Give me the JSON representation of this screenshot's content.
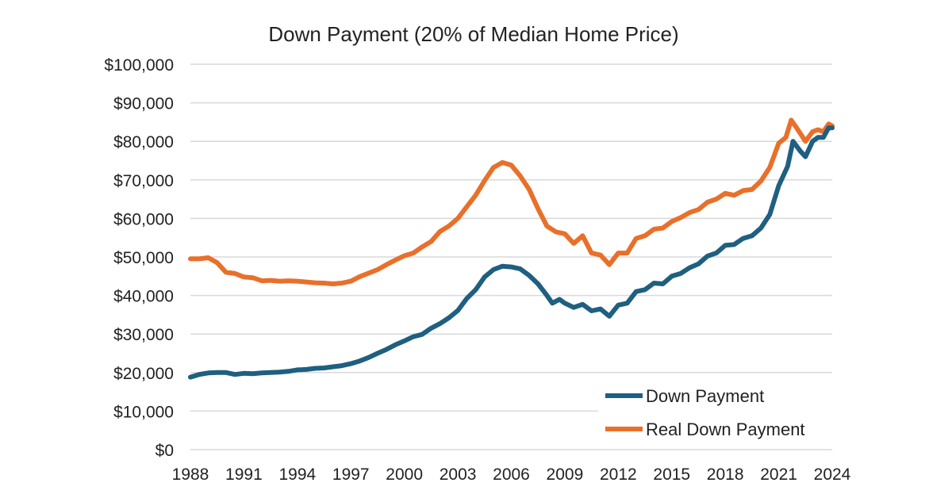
{
  "chart_data": {
    "type": "line",
    "title": "Down Payment (20% of Median Home Price)",
    "xlabel": "",
    "ylabel": "",
    "xlim": [
      1988,
      2024
    ],
    "ylim": [
      0,
      100000
    ],
    "x_ticks": [
      "1988",
      "1991",
      "1994",
      "1997",
      "2000",
      "2003",
      "2006",
      "2009",
      "2012",
      "2015",
      "2018",
      "2021",
      "2024"
    ],
    "y_ticks": [
      "$0",
      "$10,000",
      "$20,000",
      "$30,000",
      "$40,000",
      "$50,000",
      "$60,000",
      "$70,000",
      "$80,000",
      "$90,000",
      "$100,000"
    ],
    "grid": true,
    "legend_position": "bottom-right",
    "series": [
      {
        "name": "Down Payment",
        "color": "#1f5f80",
        "points": [
          [
            1988.0,
            18800
          ],
          [
            1988.5,
            19500
          ],
          [
            1989.0,
            19900
          ],
          [
            1989.5,
            20000
          ],
          [
            1990.0,
            20000
          ],
          [
            1990.5,
            19500
          ],
          [
            1991.0,
            19800
          ],
          [
            1991.5,
            19700
          ],
          [
            1992.0,
            19900
          ],
          [
            1992.5,
            20000
          ],
          [
            1993.0,
            20100
          ],
          [
            1993.5,
            20300
          ],
          [
            1994.0,
            20700
          ],
          [
            1994.5,
            20800
          ],
          [
            1995.0,
            21100
          ],
          [
            1995.5,
            21200
          ],
          [
            1996.0,
            21500
          ],
          [
            1996.5,
            21800
          ],
          [
            1997.0,
            22300
          ],
          [
            1997.5,
            23000
          ],
          [
            1998.0,
            23900
          ],
          [
            1998.5,
            25000
          ],
          [
            1999.0,
            26000
          ],
          [
            1999.5,
            27200
          ],
          [
            2000.0,
            28200
          ],
          [
            2000.5,
            29300
          ],
          [
            2001.0,
            29900
          ],
          [
            2001.5,
            31500
          ],
          [
            2002.0,
            32700
          ],
          [
            2002.5,
            34200
          ],
          [
            2003.0,
            36100
          ],
          [
            2003.5,
            39200
          ],
          [
            2004.0,
            41500
          ],
          [
            2004.5,
            44800
          ],
          [
            2005.0,
            46700
          ],
          [
            2005.5,
            47600
          ],
          [
            2006.0,
            47400
          ],
          [
            2006.5,
            46900
          ],
          [
            2007.0,
            45200
          ],
          [
            2007.5,
            43000
          ],
          [
            2008.0,
            40000
          ],
          [
            2008.3,
            38000
          ],
          [
            2008.7,
            39000
          ],
          [
            2009.0,
            38000
          ],
          [
            2009.5,
            36900
          ],
          [
            2010.0,
            37700
          ],
          [
            2010.5,
            36000
          ],
          [
            2011.0,
            36500
          ],
          [
            2011.5,
            34600
          ],
          [
            2012.0,
            37500
          ],
          [
            2012.5,
            38000
          ],
          [
            2013.0,
            41000
          ],
          [
            2013.5,
            41500
          ],
          [
            2014.0,
            43200
          ],
          [
            2014.5,
            43000
          ],
          [
            2015.0,
            45000
          ],
          [
            2015.5,
            45700
          ],
          [
            2016.0,
            47200
          ],
          [
            2016.5,
            48200
          ],
          [
            2017.0,
            50200
          ],
          [
            2017.5,
            51000
          ],
          [
            2018.0,
            53000
          ],
          [
            2018.5,
            53200
          ],
          [
            2019.0,
            54800
          ],
          [
            2019.5,
            55500
          ],
          [
            2020.0,
            57500
          ],
          [
            2020.5,
            61000
          ],
          [
            2021.0,
            68500
          ],
          [
            2021.5,
            73500
          ],
          [
            2021.8,
            80000
          ],
          [
            2022.2,
            77500
          ],
          [
            2022.5,
            76000
          ],
          [
            2022.9,
            80000
          ],
          [
            2023.2,
            81000
          ],
          [
            2023.5,
            81000
          ],
          [
            2023.8,
            83500
          ],
          [
            2024.0,
            83500
          ]
        ]
      },
      {
        "name": "Real Down Payment",
        "color": "#e8702a",
        "points": [
          [
            1988.0,
            49500
          ],
          [
            1988.5,
            49500
          ],
          [
            1989.0,
            49800
          ],
          [
            1989.5,
            48500
          ],
          [
            1990.0,
            46000
          ],
          [
            1990.5,
            45700
          ],
          [
            1991.0,
            44800
          ],
          [
            1991.5,
            44600
          ],
          [
            1992.0,
            43800
          ],
          [
            1992.5,
            43900
          ],
          [
            1993.0,
            43700
          ],
          [
            1993.5,
            43800
          ],
          [
            1994.0,
            43700
          ],
          [
            1994.5,
            43500
          ],
          [
            1995.0,
            43300
          ],
          [
            1995.5,
            43200
          ],
          [
            1996.0,
            43000
          ],
          [
            1996.5,
            43200
          ],
          [
            1997.0,
            43700
          ],
          [
            1997.5,
            44900
          ],
          [
            1998.0,
            45800
          ],
          [
            1998.5,
            46700
          ],
          [
            1999.0,
            48000
          ],
          [
            1999.5,
            49200
          ],
          [
            2000.0,
            50300
          ],
          [
            2000.5,
            51000
          ],
          [
            2001.0,
            52600
          ],
          [
            2001.5,
            54000
          ],
          [
            2002.0,
            56600
          ],
          [
            2002.5,
            58000
          ],
          [
            2003.0,
            60000
          ],
          [
            2003.5,
            63000
          ],
          [
            2004.0,
            66000
          ],
          [
            2004.5,
            69800
          ],
          [
            2005.0,
            73200
          ],
          [
            2005.5,
            74500
          ],
          [
            2006.0,
            73800
          ],
          [
            2006.5,
            71000
          ],
          [
            2007.0,
            67500
          ],
          [
            2007.5,
            62500
          ],
          [
            2008.0,
            58000
          ],
          [
            2008.5,
            56500
          ],
          [
            2009.0,
            56000
          ],
          [
            2009.5,
            53500
          ],
          [
            2010.0,
            55500
          ],
          [
            2010.5,
            51000
          ],
          [
            2011.0,
            50500
          ],
          [
            2011.5,
            48000
          ],
          [
            2012.0,
            51000
          ],
          [
            2012.5,
            51000
          ],
          [
            2013.0,
            54800
          ],
          [
            2013.5,
            55500
          ],
          [
            2014.0,
            57200
          ],
          [
            2014.5,
            57500
          ],
          [
            2015.0,
            59200
          ],
          [
            2015.5,
            60200
          ],
          [
            2016.0,
            61500
          ],
          [
            2016.5,
            62300
          ],
          [
            2017.0,
            64200
          ],
          [
            2017.5,
            65000
          ],
          [
            2018.0,
            66500
          ],
          [
            2018.5,
            66000
          ],
          [
            2019.0,
            67200
          ],
          [
            2019.5,
            67500
          ],
          [
            2020.0,
            69700
          ],
          [
            2020.5,
            73200
          ],
          [
            2021.0,
            79500
          ],
          [
            2021.4,
            81000
          ],
          [
            2021.7,
            85500
          ],
          [
            2022.0,
            83500
          ],
          [
            2022.5,
            80000
          ],
          [
            2022.9,
            82500
          ],
          [
            2023.2,
            83000
          ],
          [
            2023.5,
            82500
          ],
          [
            2023.8,
            84500
          ],
          [
            2024.0,
            84000
          ]
        ]
      }
    ]
  }
}
